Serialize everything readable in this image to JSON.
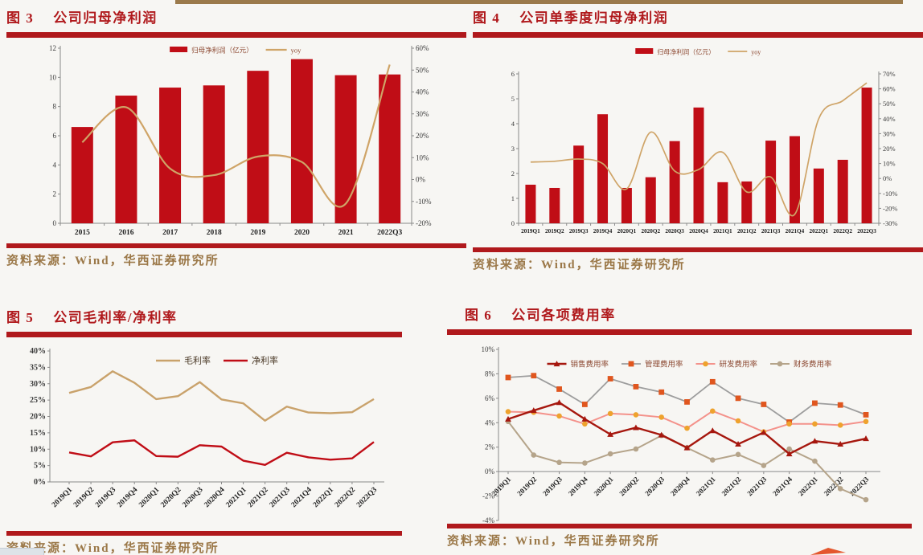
{
  "page": {
    "top_bar_color": "#9b7a4b",
    "accent_red": "#b0191c",
    "source_label": "资料来源：Wind，华西证券研究所",
    "source_color": "#9b7848"
  },
  "figures": {
    "fig3": {
      "label": "图 3",
      "title": "公司归母净利润"
    },
    "fig4": {
      "label": "图 4",
      "title": "公司单季度归母净利润"
    },
    "fig5": {
      "label": "图 5",
      "title": "公司毛利率/净利率"
    },
    "fig6": {
      "label": "图 6",
      "title": "公司各项费用率"
    }
  },
  "chart_data": [
    {
      "id": "fig3",
      "type": "bar",
      "title": "公司归母净利润",
      "grid": false,
      "legend_position": "top-center",
      "categories": [
        "2015",
        "2016",
        "2017",
        "2018",
        "2019",
        "2020",
        "2021",
        "2022Q3"
      ],
      "series": [
        {
          "name": "归母净利润（亿元）",
          "type": "bar",
          "axis": "left",
          "color": "#c00d16",
          "values": [
            6.6,
            8.75,
            9.3,
            9.45,
            10.45,
            11.25,
            10.15,
            10.2
          ]
        },
        {
          "name": "yoy",
          "type": "line",
          "axis": "right",
          "color": "#cfa467",
          "smooth": true,
          "width": 2.2,
          "values": [
            17,
            33,
            5,
            2,
            10.5,
            8,
            -11,
            52.5
          ]
        }
      ],
      "left_axis": {
        "min": 0,
        "max": 12,
        "step": 2,
        "labels": [
          "0",
          "2",
          "4",
          "6",
          "8",
          "10",
          "12"
        ]
      },
      "right_axis": {
        "min": -20,
        "max": 60,
        "step": 10,
        "labels": [
          "-20%",
          "-10%",
          "0%",
          "10%",
          "20%",
          "30%",
          "40%",
          "50%",
          "60%"
        ]
      }
    },
    {
      "id": "fig4",
      "type": "bar",
      "title": "公司单季度归母净利润",
      "grid": false,
      "legend_position": "top-center",
      "categories": [
        "2019Q1",
        "2019Q2",
        "2019Q3",
        "2019Q4",
        "2020Q1",
        "2020Q2",
        "2020Q3",
        "2020Q4",
        "2021Q1",
        "2021Q2",
        "2021Q3",
        "2021Q4",
        "2022Q1",
        "2022Q2",
        "2022Q3"
      ],
      "series": [
        {
          "name": "归母净利润（亿元）",
          "type": "bar",
          "axis": "left",
          "color": "#c00d16",
          "values": [
            1.55,
            1.42,
            3.12,
            4.38,
            1.42,
            1.85,
            3.3,
            4.65,
            1.65,
            1.68,
            3.32,
            3.5,
            2.2,
            2.55,
            5.45
          ]
        },
        {
          "name": "yoy",
          "type": "line",
          "axis": "right",
          "color": "#cfa467",
          "smooth": true,
          "width": 1.7,
          "values": [
            11,
            11.5,
            13,
            10,
            -7,
            31,
            5,
            6,
            17.5,
            -9,
            1,
            -24,
            40,
            52,
            64
          ]
        }
      ],
      "left_axis": {
        "min": 0,
        "max": 6,
        "step": 1,
        "labels": [
          "0",
          "1",
          "2",
          "3",
          "4",
          "5",
          "6"
        ]
      },
      "right_axis": {
        "min": -30,
        "max": 70,
        "step": 10,
        "labels": [
          "-30%",
          "-20%",
          "-10%",
          "0%",
          "10%",
          "20%",
          "30%",
          "40%",
          "50%",
          "60%",
          "70%"
        ]
      }
    },
    {
      "id": "fig5",
      "type": "line",
      "title": "公司毛利率/净利率",
      "grid": false,
      "legend_position": "top-center",
      "categories": [
        "2019Q1",
        "2019Q2",
        "2019Q3",
        "2019Q4",
        "2020Q1",
        "2020Q2",
        "2020Q3",
        "2020Q4",
        "2021Q1",
        "2021Q2",
        "2021Q3",
        "2021Q4",
        "2022Q1",
        "2022Q2",
        "2022Q3"
      ],
      "series": [
        {
          "name": "毛利率",
          "type": "line",
          "axis": "left",
          "color": "#c9a26b",
          "width": 2.4,
          "values": [
            27.2,
            29,
            33.8,
            30.3,
            25.3,
            26.2,
            30.5,
            25.2,
            24,
            18.7,
            23,
            21.2,
            21,
            21.3,
            25.3
          ]
        },
        {
          "name": "净利率",
          "type": "line",
          "axis": "left",
          "color": "#c00d16",
          "width": 2.4,
          "values": [
            9,
            7.8,
            12.1,
            12.7,
            7.9,
            7.7,
            11.2,
            10.8,
            6.5,
            5.2,
            8.9,
            7.5,
            6.8,
            7.2,
            12.2
          ]
        }
      ],
      "left_axis": {
        "min": 0,
        "max": 40,
        "step": 5,
        "labels": [
          "0%",
          "5%",
          "10%",
          "15%",
          "20%",
          "25%",
          "30%",
          "35%",
          "40%"
        ]
      }
    },
    {
      "id": "fig6",
      "type": "line",
      "title": "公司各项费用率",
      "grid": false,
      "legend_position": "top-center",
      "x_axis_at": 0,
      "categories": [
        "2019Q1",
        "2019Q2",
        "2019Q3",
        "2019Q4",
        "2020Q1",
        "2020Q2",
        "2020Q3",
        "2020Q4",
        "2021Q1",
        "2021Q2",
        "2021Q3",
        "2021Q4",
        "2022Q1",
        "2022Q2",
        "2022Q3"
      ],
      "series": [
        {
          "name": "财务费用率",
          "type": "line",
          "axis": "left",
          "color": "#b5a48a",
          "marker": "circle",
          "marker_color": "#b5a48a",
          "width": 2,
          "values": [
            4.1,
            1.35,
            0.75,
            0.7,
            1.45,
            1.85,
            2.95,
            1.95,
            0.95,
            1.4,
            0.5,
            1.85,
            0.85,
            -1.4,
            -2.3
          ]
        },
        {
          "name": "管理费用率",
          "type": "line",
          "axis": "left",
          "color": "#9d9d9d",
          "marker": "square",
          "marker_color": "#e0561e",
          "width": 1.8,
          "values": [
            7.7,
            7.85,
            6.75,
            5.5,
            7.6,
            6.95,
            6.5,
            5.7,
            7.35,
            6.0,
            5.5,
            4.05,
            5.6,
            5.45,
            4.65
          ]
        },
        {
          "name": "研发费用率",
          "type": "line",
          "axis": "left",
          "color": "#f4928b",
          "marker": "circle",
          "marker_color": "#eea22d",
          "width": 2,
          "values": [
            4.9,
            4.85,
            4.55,
            3.9,
            4.75,
            4.65,
            4.45,
            3.55,
            4.95,
            4.15,
            3.25,
            3.9,
            3.9,
            3.8,
            4.1
          ]
        },
        {
          "name": "销售费用率",
          "type": "line",
          "axis": "left",
          "color": "#a6170e",
          "marker": "triangle",
          "marker_color": "#a6170e",
          "width": 2.4,
          "values": [
            4.3,
            5.0,
            5.65,
            4.3,
            3.05,
            3.6,
            3.0,
            1.95,
            3.35,
            2.25,
            3.2,
            1.45,
            2.5,
            2.25,
            2.7
          ]
        }
      ],
      "legend_order": [
        "销售费用率",
        "管理费用率",
        "研发费用率",
        "财务费用率"
      ],
      "left_axis": {
        "min": -4,
        "max": 10,
        "step": 2,
        "labels": [
          "-4%",
          "-2%",
          "0%",
          "2%",
          "4%",
          "6%",
          "8%",
          "10%"
        ]
      }
    }
  ]
}
